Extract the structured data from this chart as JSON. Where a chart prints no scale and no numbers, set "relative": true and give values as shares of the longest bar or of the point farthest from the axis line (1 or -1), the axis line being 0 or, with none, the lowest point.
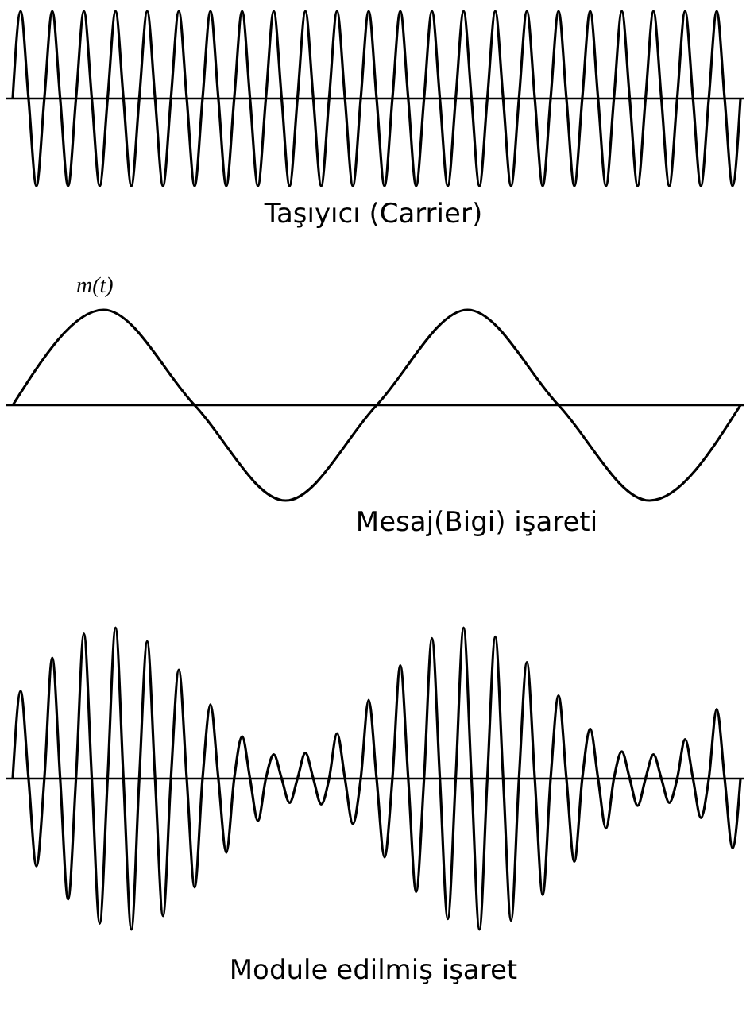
{
  "chart_data": [
    {
      "type": "line",
      "relative": true,
      "title": "Taşıyıcı  (Carrier)",
      "categories": [
        null,
        null,
        null,
        null,
        null,
        null,
        null,
        null,
        null,
        null,
        null,
        null,
        null,
        null,
        null,
        null,
        null,
        null,
        null,
        null,
        null,
        null,
        null,
        null,
        null,
        null,
        null,
        null,
        null,
        null,
        null,
        null,
        null,
        null,
        null,
        null,
        null,
        null,
        null,
        null,
        null,
        null,
        null,
        null,
        null,
        null,
        null,
        null,
        null,
        null,
        null,
        null,
        null,
        null,
        null,
        null,
        null,
        null,
        null,
        null,
        null,
        null,
        null,
        null,
        null,
        null,
        null,
        null,
        null,
        null,
        null,
        null,
        null,
        null,
        null,
        null,
        null,
        null,
        null,
        null,
        null,
        null,
        null,
        null,
        null,
        null,
        null,
        null,
        null,
        null,
        null,
        null,
        null
      ],
      "series": [
        {
          "color": "#000000",
          "values": [
            0,
            1,
            0,
            -1,
            0,
            1,
            0,
            -1,
            0,
            1,
            0,
            -1,
            0,
            1,
            0,
            -1,
            0,
            1,
            0,
            -1,
            0,
            1,
            0,
            -1,
            0,
            1,
            0,
            -1,
            0,
            1,
            0,
            -1,
            0,
            1,
            0,
            -1,
            0,
            1,
            0,
            -1,
            0,
            1,
            0,
            -1,
            0,
            1,
            0,
            -1,
            0,
            1,
            0,
            -1,
            0,
            1,
            0,
            -1,
            0,
            1,
            0,
            -1,
            0,
            1,
            0,
            -1,
            0,
            1,
            0,
            -1,
            0,
            1,
            0,
            -1,
            0,
            1,
            0,
            -1,
            0,
            1,
            0,
            -1,
            0,
            1,
            0,
            -1,
            0,
            1,
            0,
            -1,
            0,
            1,
            0,
            -1,
            0
          ]
        }
      ]
    },
    {
      "type": "line",
      "relative": true,
      "title": "Mesaj(Bigi) işareti",
      "annotations": [
        "m(t)"
      ],
      "categories": [
        null,
        null,
        null,
        null,
        null,
        null,
        null,
        null,
        null
      ],
      "series": [
        {
          "color": "#000000",
          "values": [
            0,
            1,
            0,
            -1,
            0,
            1,
            0,
            -1,
            0
          ]
        }
      ]
    },
    {
      "type": "line",
      "relative": true,
      "title": "Module edilmiş işaret",
      "categories": [
        null,
        null,
        null,
        null,
        null,
        null,
        null,
        null,
        null,
        null,
        null,
        null,
        null,
        null,
        null,
        null,
        null,
        null,
        null,
        null,
        null,
        null,
        null,
        null,
        null,
        null,
        null,
        null,
        null,
        null,
        null,
        null,
        null,
        null,
        null,
        null,
        null,
        null,
        null,
        null,
        null,
        null,
        null,
        null,
        null,
        null,
        null,
        null,
        null,
        null,
        null,
        null,
        null,
        null,
        null,
        null,
        null,
        null,
        null,
        null,
        null,
        null,
        null,
        null,
        null,
        null,
        null,
        null,
        null,
        null,
        null,
        null,
        null,
        null,
        null,
        null,
        null,
        null,
        null,
        null,
        null,
        null,
        null,
        null,
        null,
        null,
        null,
        null,
        null,
        null,
        null,
        null,
        null
      ],
      "series": [
        {
          "color": "#000000",
          "values": [
            0,
            0.58,
            0,
            -0.58,
            0,
            0.8,
            0,
            -0.8,
            0,
            0.96,
            0,
            -0.96,
            0,
            1,
            0,
            -1,
            0,
            0.91,
            0,
            -0.91,
            0,
            0.72,
            0,
            -0.72,
            0,
            0.49,
            0,
            -0.49,
            0,
            0.28,
            0,
            -0.28,
            0,
            0.16,
            0,
            -0.16,
            0,
            0.17,
            0,
            -0.17,
            0,
            0.3,
            0,
            -0.3,
            0,
            0.52,
            0,
            -0.52,
            0,
            0.75,
            0,
            -0.75,
            0,
            0.93,
            0,
            -0.93,
            0,
            1,
            0,
            -1,
            0,
            0.94,
            0,
            -0.94,
            0,
            0.77,
            0,
            -0.77,
            0,
            0.55,
            0,
            -0.55,
            0,
            0.33,
            0,
            -0.33,
            0,
            0.18,
            0,
            -0.18,
            0,
            0.16,
            0,
            -0.16,
            0,
            0.26,
            0,
            -0.26,
            0,
            0.46,
            0,
            -0.46,
            0
          ]
        }
      ]
    }
  ]
}
